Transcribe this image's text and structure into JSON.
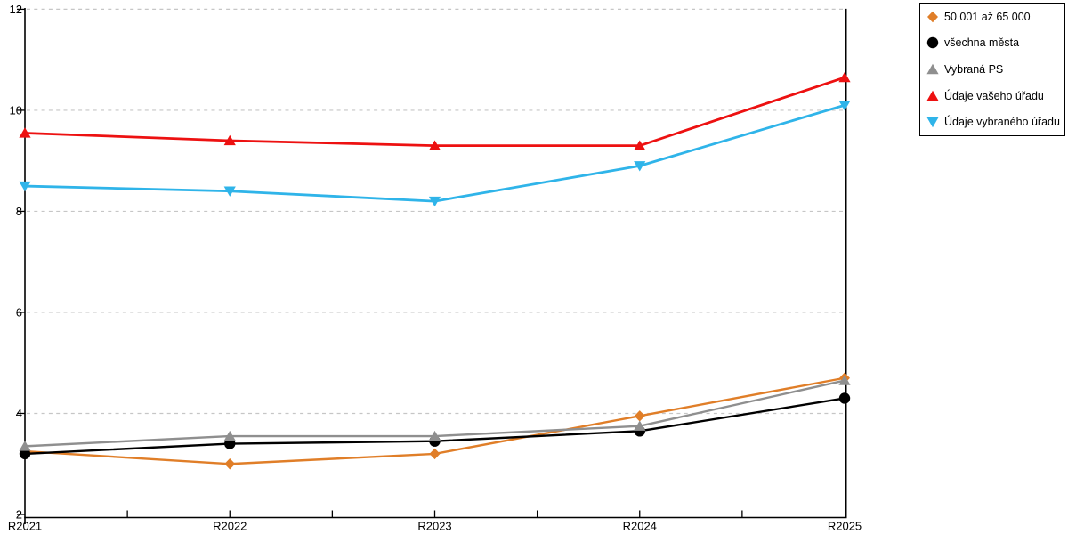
{
  "chart_data": {
    "type": "line",
    "title": "",
    "xlabel": "",
    "ylabel": "",
    "categories": [
      "R2021",
      "R2022",
      "R2023",
      "R2024",
      "R2025"
    ],
    "series": [
      {
        "name": "50 001 až 65 000",
        "marker": "diamond",
        "color": "#E07E28",
        "values": [
          3.25,
          3.0,
          3.2,
          3.95,
          4.7
        ]
      },
      {
        "name": "všechna města",
        "marker": "circle",
        "color": "#000000",
        "values": [
          3.2,
          3.4,
          3.45,
          3.65,
          4.3
        ]
      },
      {
        "name": "Vybraná PS",
        "marker": "triangle-up",
        "color": "#8F8F8F",
        "values": [
          3.35,
          3.55,
          3.55,
          3.75,
          4.65
        ]
      },
      {
        "name": "Údaje vašeho úřadu",
        "marker": "triangle-up",
        "color": "#ED1111",
        "values": [
          9.55,
          9.4,
          9.3,
          9.3,
          10.65
        ]
      },
      {
        "name": "Údaje vybraného úřadu",
        "marker": "triangle-down",
        "color": "#2FB4E9",
        "values": [
          8.5,
          8.4,
          8.2,
          8.9,
          10.1
        ]
      }
    ],
    "ylim": [
      2,
      12
    ],
    "yticks": [
      2,
      4,
      6,
      8,
      10,
      12
    ],
    "grid": true,
    "grid_style": "dashed",
    "grid_color": "#c6c6c6",
    "axis_color": "#000000",
    "background": "#ffffff",
    "legend_position": "outside-top-right"
  }
}
